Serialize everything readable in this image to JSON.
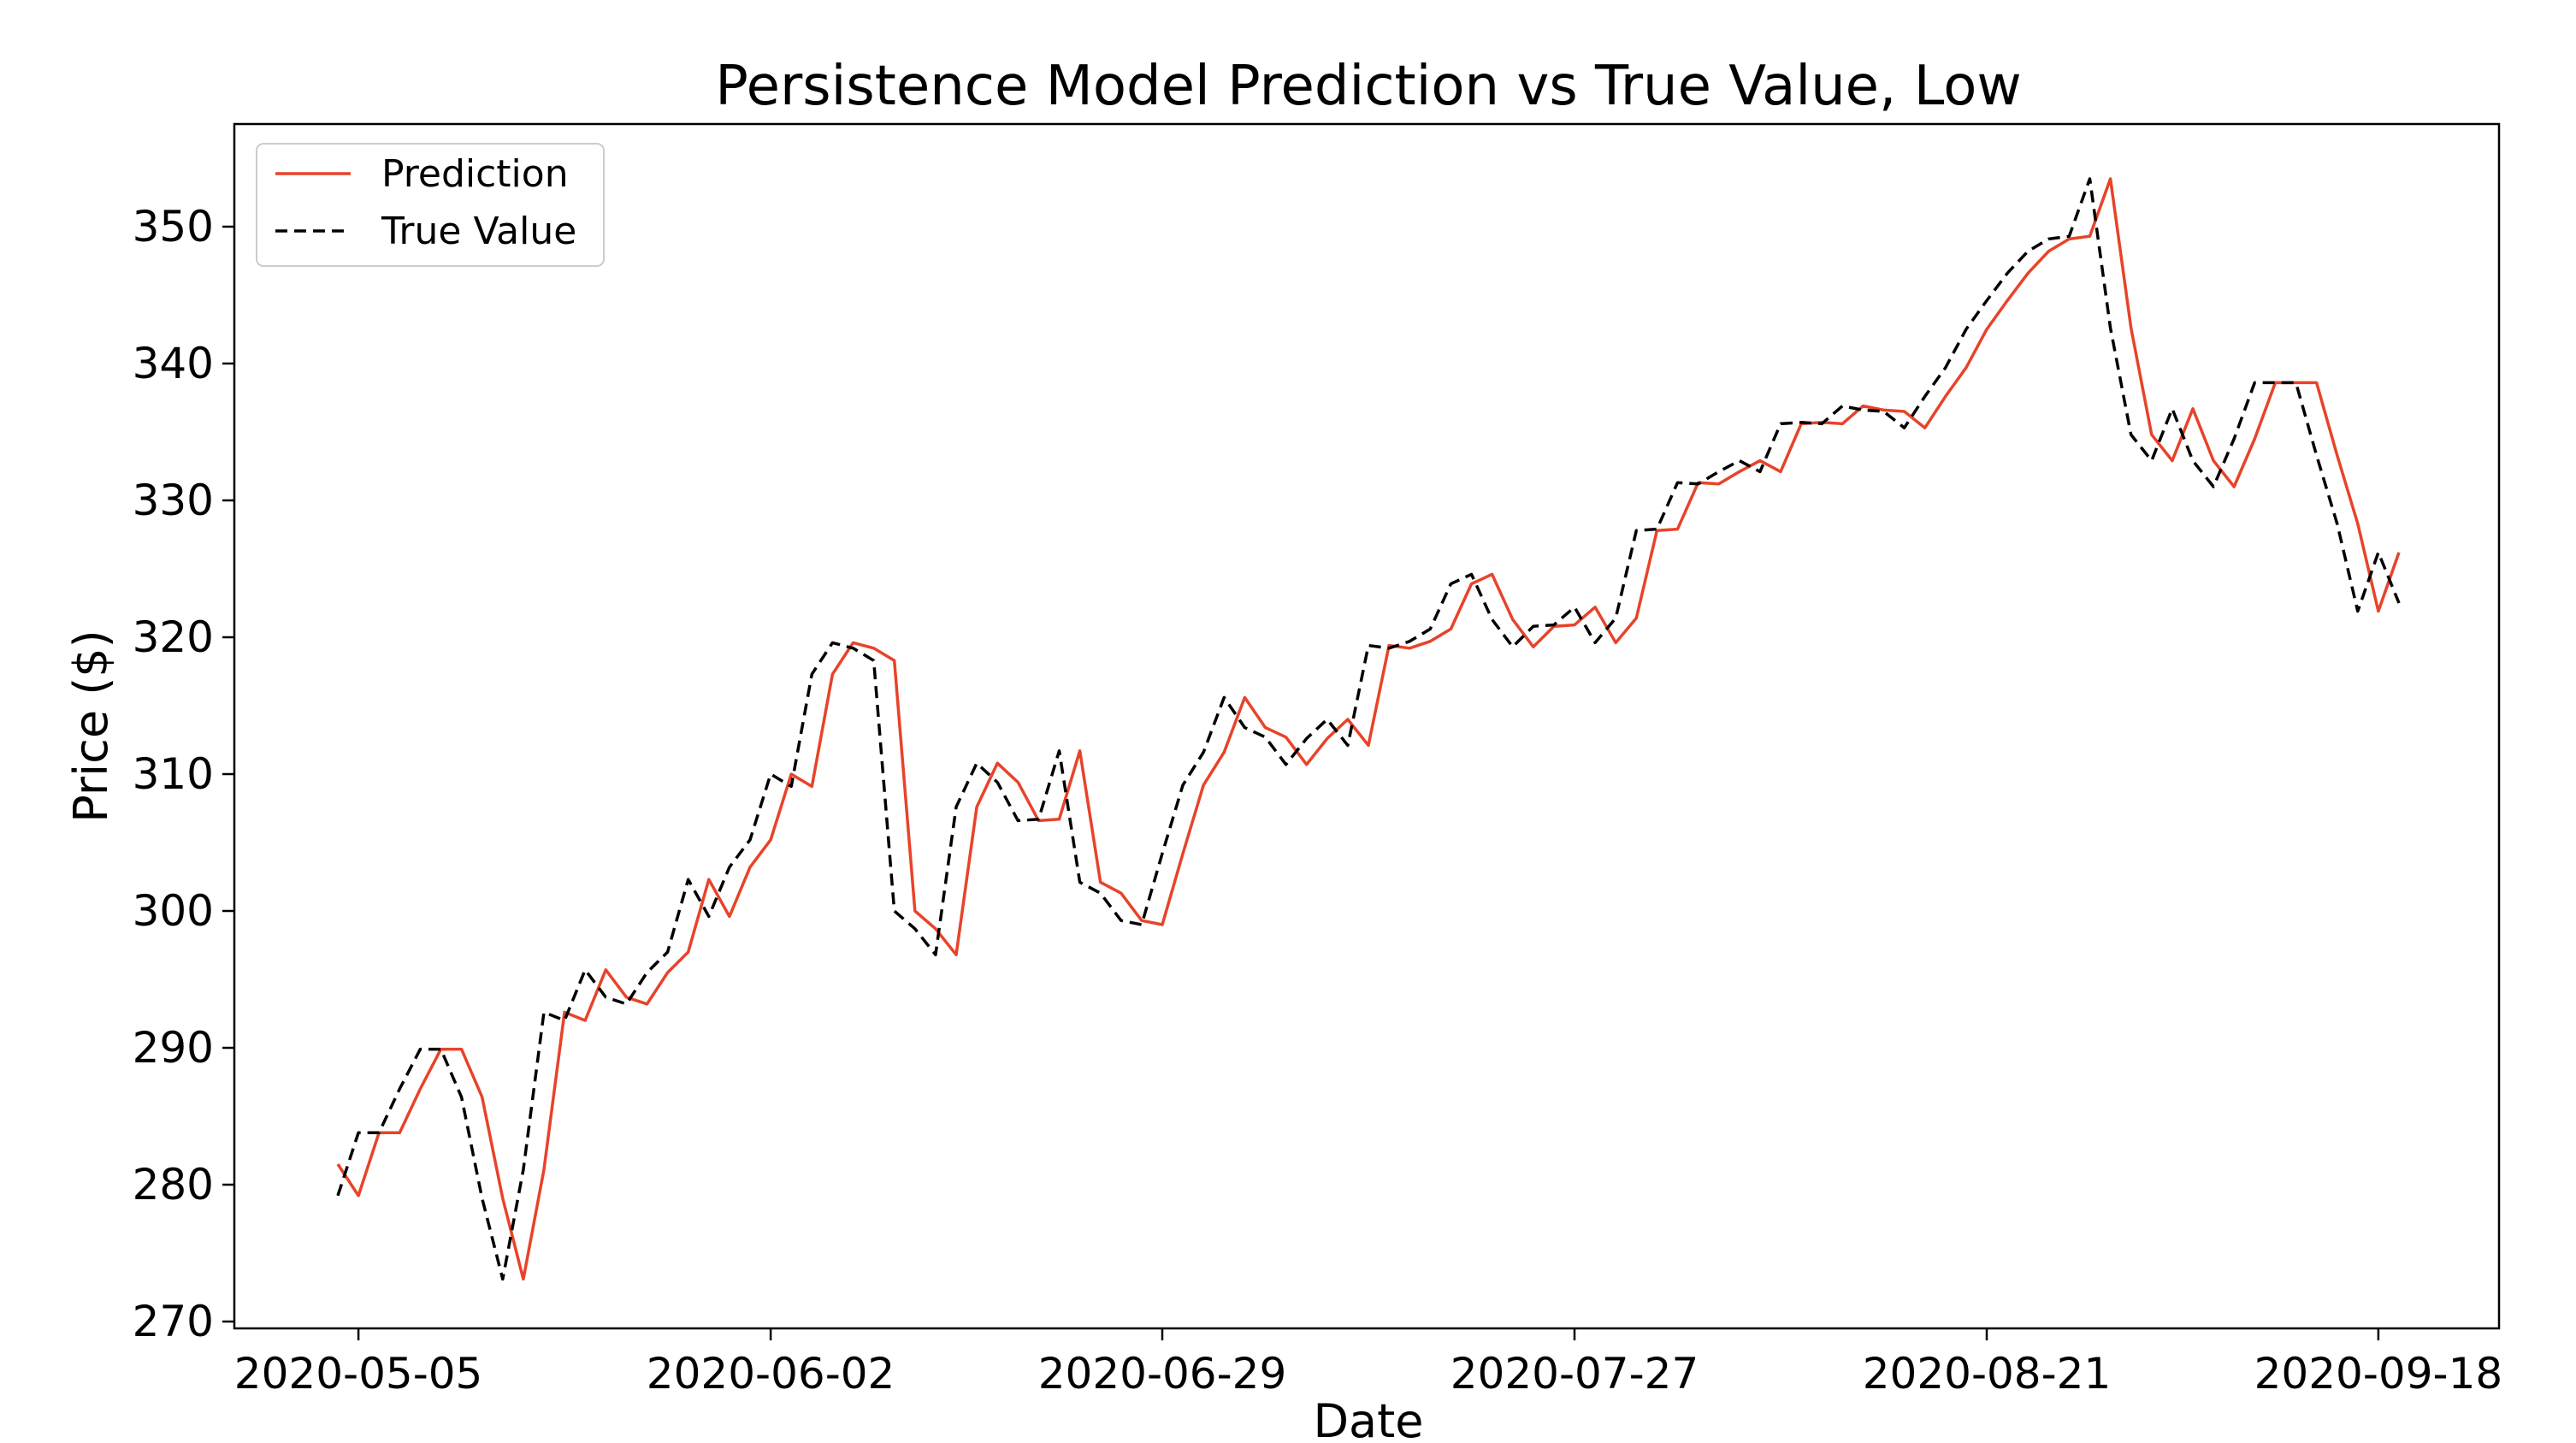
{
  "chart_data": {
    "type": "line",
    "title": "Persistence Model Prediction vs True Value, Low",
    "xlabel": "Date",
    "ylabel": "Price ($)",
    "x_tick_labels": [
      "2020-05-05",
      "2020-06-02",
      "2020-06-29",
      "2020-07-27",
      "2020-08-21",
      "2020-09-18"
    ],
    "y_ticks": [
      270,
      280,
      290,
      300,
      310,
      320,
      330,
      340,
      350
    ],
    "ylim": [
      269.5,
      357.5
    ],
    "legend_position": "upper-left",
    "grid": false,
    "series": [
      {
        "name": "Prediction",
        "color": "#e8432a",
        "dash": "solid",
        "values": [
          281.5,
          279.2,
          283.8,
          283.8,
          287.0,
          289.9,
          289.9,
          286.4,
          279.0,
          273.1,
          281.1,
          292.6,
          292.0,
          295.7,
          293.7,
          293.2,
          295.5,
          297.0,
          302.3,
          299.6,
          303.2,
          305.2,
          310.0,
          309.1,
          317.3,
          319.6,
          319.2,
          318.3,
          300.0,
          298.7,
          296.8,
          307.6,
          310.8,
          309.4,
          306.6,
          306.7,
          311.7,
          302.1,
          301.3,
          299.3,
          299.0,
          304.2,
          309.2,
          311.6,
          315.6,
          313.4,
          312.7,
          310.7,
          312.6,
          314.0,
          312.1,
          319.4,
          319.2,
          319.7,
          320.6,
          323.9,
          324.6,
          321.3,
          319.3,
          320.8,
          320.9,
          322.2,
          319.6,
          321.4,
          327.8,
          327.9,
          331.3,
          331.2,
          332.1,
          332.9,
          332.1,
          335.6,
          335.7,
          335.6,
          336.9,
          336.6,
          336.5,
          335.3,
          337.6,
          339.7,
          342.5,
          344.6,
          346.6,
          348.2,
          349.1,
          349.3,
          353.5,
          342.6,
          334.8,
          332.9,
          336.7,
          332.9,
          331.0,
          334.5,
          338.6,
          338.6,
          338.6,
          333.3,
          328.3,
          321.9,
          326.2
        ]
      },
      {
        "name": "True Value",
        "color": "#000000",
        "dash": "dashed",
        "values": [
          279.2,
          283.8,
          283.8,
          287.0,
          289.9,
          289.9,
          286.4,
          279.0,
          273.1,
          281.1,
          292.6,
          292.0,
          295.7,
          293.7,
          293.2,
          295.5,
          297.0,
          302.3,
          299.6,
          303.2,
          305.2,
          310.0,
          309.1,
          317.3,
          319.6,
          319.2,
          318.3,
          300.0,
          298.7,
          296.8,
          307.6,
          310.8,
          309.4,
          306.6,
          306.7,
          311.7,
          302.1,
          301.3,
          299.3,
          299.0,
          304.2,
          309.2,
          311.6,
          315.6,
          313.4,
          312.7,
          310.7,
          312.6,
          314.0,
          312.1,
          319.4,
          319.2,
          319.7,
          320.6,
          323.9,
          324.6,
          321.3,
          319.3,
          320.8,
          320.9,
          322.2,
          319.6,
          321.4,
          327.8,
          327.9,
          331.3,
          331.2,
          332.1,
          332.9,
          332.1,
          335.6,
          335.7,
          335.6,
          336.9,
          336.6,
          336.5,
          335.3,
          337.6,
          339.7,
          342.5,
          344.6,
          346.6,
          348.2,
          349.1,
          349.3,
          353.5,
          342.6,
          334.8,
          332.9,
          336.7,
          332.9,
          331.0,
          334.5,
          338.6,
          338.6,
          338.6,
          333.3,
          328.3,
          321.9,
          326.2,
          322.5
        ]
      }
    ]
  }
}
